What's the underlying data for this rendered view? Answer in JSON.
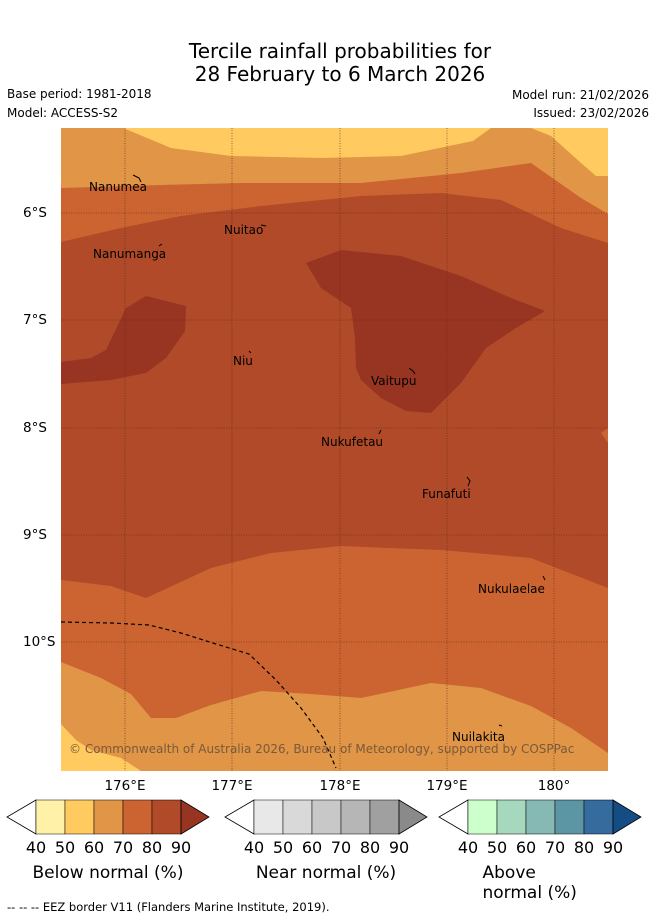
{
  "header": {
    "title_line1": "Tercile rainfall probabilities for",
    "title_line2": "28 February to 6 March 2026",
    "base_period": "Base period: 1981-2018",
    "model": "Model: ACCESS-S2",
    "model_run": "Model run: 21/02/2026",
    "issued": "Issued: 23/02/2026"
  },
  "map": {
    "lat_labels": [
      "6°S",
      "7°S",
      "8°S",
      "9°S",
      "10°S"
    ],
    "lon_labels": [
      "176°E",
      "177°E",
      "178°E",
      "179°E",
      "180°"
    ],
    "places": [
      "Nanumea",
      "Nuitao",
      "Nanumanga",
      "Niu",
      "Vaitupu",
      "Nukufetau",
      "Funafuti",
      "Nukulaelae",
      "Nuilakita"
    ],
    "copyright": "© Commonwealth of Australia 2026, Bureau of Meteorology, supported by COSPPac"
  },
  "colorbars": [
    {
      "title": "Below normal (%)",
      "ticks": [
        "40",
        "50",
        "60",
        "70",
        "80",
        "90"
      ],
      "colors": [
        "#fff1a8",
        "#ffca5f",
        "#e09547",
        "#cc6431",
        "#b04a28",
        "#983522"
      ]
    },
    {
      "title": "Near normal (%)",
      "ticks": [
        "40",
        "50",
        "60",
        "70",
        "80",
        "90"
      ],
      "colors": [
        "#e8e8e8",
        "#d9d9d9",
        "#c8c8c8",
        "#b6b6b6",
        "#a0a0a0",
        "#8a8a8a"
      ]
    },
    {
      "title": "Above normal (%)",
      "ticks": [
        "40",
        "50",
        "60",
        "70",
        "80",
        "90"
      ],
      "colors": [
        "#ccffcc",
        "#a5d8bc",
        "#86b8b4",
        "#5c95a3",
        "#366b9e",
        "#144c84"
      ]
    }
  ],
  "footer": {
    "legend_line": "--  --  -- EEZ border V11 (Flanders Marine Institute, 2019)."
  }
}
